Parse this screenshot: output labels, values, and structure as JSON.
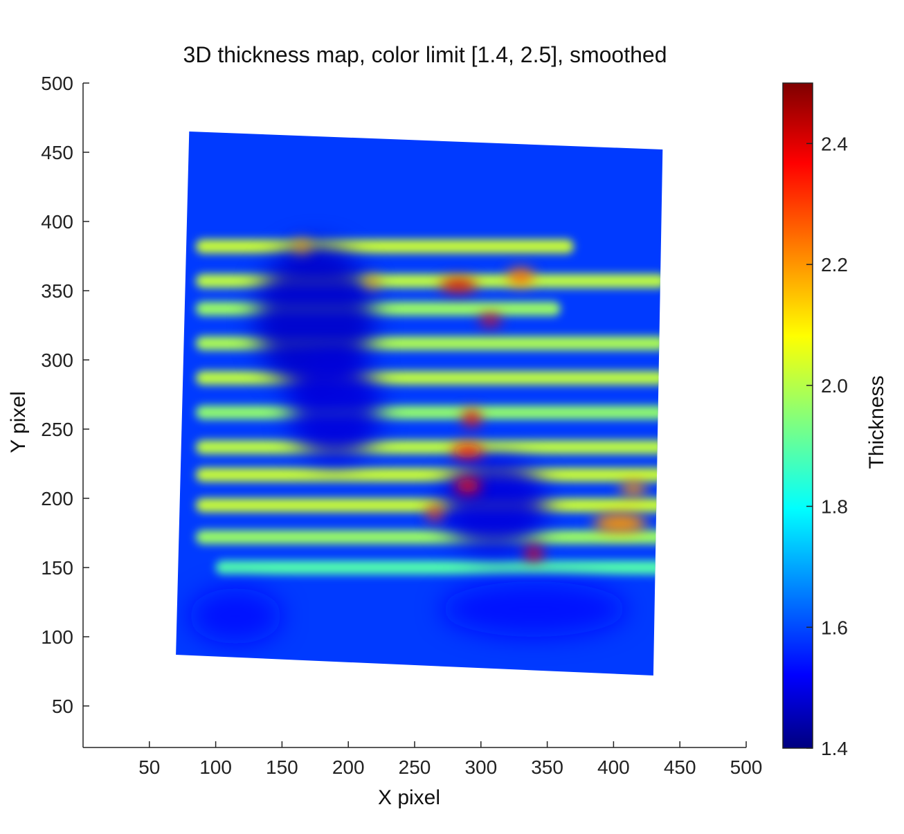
{
  "chart_data": {
    "type": "heatmap",
    "title": "3D thickness map, color limit [1.4, 2.5], smoothed",
    "xlabel": "X pixel",
    "ylabel": "Y pixel",
    "xlim": [
      0,
      500
    ],
    "ylim": [
      20,
      500
    ],
    "xticks": [
      50,
      100,
      150,
      200,
      250,
      300,
      350,
      400,
      450,
      500
    ],
    "yticks": [
      50,
      100,
      150,
      200,
      250,
      300,
      350,
      400,
      450,
      500
    ],
    "colorbar": {
      "label": "Thickness",
      "limits": [
        1.4,
        2.5
      ],
      "ticks": [
        1.4,
        1.6,
        1.8,
        2.0,
        2.2,
        2.4
      ],
      "tick_labels": [
        "1.4",
        "1.6",
        "1.8",
        "2.0",
        "2.2",
        "2.4"
      ],
      "colormap": "jet",
      "placement": "right"
    },
    "sample_region_corners": [
      [
        80,
        465
      ],
      [
        437,
        452
      ],
      [
        430,
        72
      ],
      [
        70,
        87
      ]
    ],
    "base_level": 1.6,
    "bands": [
      {
        "y": 382,
        "x0": 85,
        "x1": 370,
        "value": 2.03
      },
      {
        "y": 357,
        "x0": 85,
        "x1": 440,
        "value": 2.02
      },
      {
        "y": 337,
        "x0": 85,
        "x1": 360,
        "value": 1.98
      },
      {
        "y": 312,
        "x0": 85,
        "x1": 440,
        "value": 2.0
      },
      {
        "y": 287,
        "x0": 85,
        "x1": 440,
        "value": 2.02
      },
      {
        "y": 262,
        "x0": 85,
        "x1": 440,
        "value": 1.97
      },
      {
        "y": 237,
        "x0": 85,
        "x1": 440,
        "value": 2.02
      },
      {
        "y": 217,
        "x0": 85,
        "x1": 440,
        "value": 2.03
      },
      {
        "y": 195,
        "x0": 85,
        "x1": 440,
        "value": 2.03
      },
      {
        "y": 172,
        "x0": 85,
        "x1": 440,
        "value": 1.98
      },
      {
        "y": 150,
        "x0": 100,
        "x1": 440,
        "value": 1.9
      }
    ],
    "low_regions": [
      {
        "x": 175,
        "y": 330,
        "rx": 45,
        "ry": 55,
        "value": 1.48
      },
      {
        "x": 190,
        "y": 265,
        "rx": 35,
        "ry": 40,
        "value": 1.5
      },
      {
        "x": 310,
        "y": 195,
        "rx": 40,
        "ry": 35,
        "value": 1.5
      },
      {
        "x": 115,
        "y": 115,
        "rx": 35,
        "ry": 20,
        "value": 1.55
      },
      {
        "x": 340,
        "y": 120,
        "rx": 70,
        "ry": 20,
        "value": 1.55
      }
    ],
    "high_regions": [
      {
        "x": 283,
        "y": 354,
        "rx": 14,
        "ry": 5,
        "value": 2.4
      },
      {
        "x": 307,
        "y": 329,
        "rx": 8,
        "ry": 4,
        "value": 2.38
      },
      {
        "x": 293,
        "y": 258,
        "rx": 7,
        "ry": 6,
        "value": 2.38
      },
      {
        "x": 290,
        "y": 234,
        "rx": 12,
        "ry": 5,
        "value": 2.35
      },
      {
        "x": 290,
        "y": 209,
        "rx": 10,
        "ry": 5,
        "value": 2.35
      },
      {
        "x": 265,
        "y": 189,
        "rx": 6,
        "ry": 5,
        "value": 2.3
      },
      {
        "x": 340,
        "y": 160,
        "rx": 7,
        "ry": 5,
        "value": 2.38
      },
      {
        "x": 330,
        "y": 360,
        "rx": 10,
        "ry": 6,
        "value": 2.25
      },
      {
        "x": 405,
        "y": 182,
        "rx": 20,
        "ry": 7,
        "value": 2.2
      },
      {
        "x": 415,
        "y": 207,
        "rx": 10,
        "ry": 5,
        "value": 2.2
      },
      {
        "x": 165,
        "y": 382,
        "rx": 6,
        "ry": 4,
        "value": 2.2
      },
      {
        "x": 218,
        "y": 356,
        "rx": 5,
        "ry": 4,
        "value": 2.2
      }
    ]
  }
}
